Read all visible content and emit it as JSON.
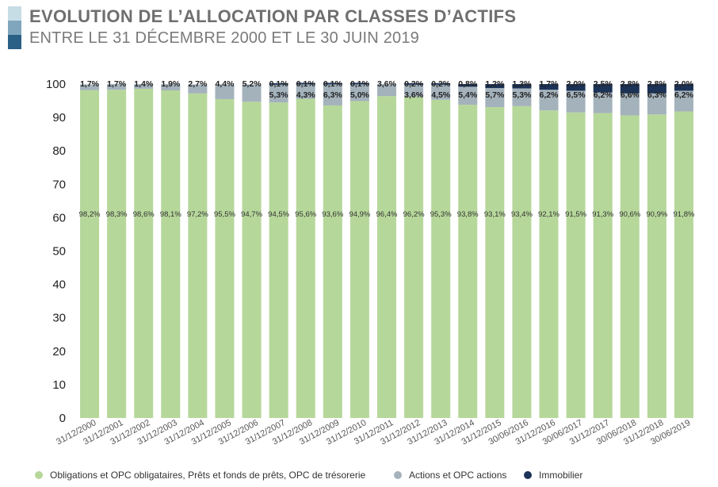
{
  "header": {
    "title": "EVOLUTION DE L’ALLOCATION PAR CLASSES D’ACTIFS",
    "subtitle": "ENTRE LE 31 DÉCEMBRE 2000 ET LE 30 JUIN 2019",
    "stripe_colors": [
      "#c6dde6",
      "#7fa6bd",
      "#2a5f86"
    ]
  },
  "colors": {
    "obligations": "#b6d79a",
    "actions": "#a4b2bc",
    "immobilier": "#1c3358",
    "axis_text": "#222222",
    "tick_label": "#555555"
  },
  "chart_data": {
    "type": "bar",
    "stacked": true,
    "ylim": [
      0,
      100
    ],
    "yticks": [
      0,
      10,
      20,
      30,
      40,
      50,
      60,
      70,
      80,
      90,
      100
    ],
    "categories": [
      "31/12/2000",
      "31/12/2001",
      "31/12/2002",
      "31/12/2003",
      "31/12/2004",
      "31/12/2005",
      "31/12/2006",
      "31/12/2007",
      "31/12/2008",
      "31/12/2009",
      "31/12/2010",
      "31/12/2011",
      "31/12/2012",
      "31/12/2013",
      "31/12/2014",
      "31/12/2015",
      "30/06/2016",
      "31/12/2016",
      "30/06/2017",
      "31/12/2017",
      "30/06/2018",
      "31/12/2018",
      "30/06/2019"
    ],
    "series": [
      {
        "name": "Obligations et OPC obligataires, Prêts et fonds de prêts, OPC de trésorerie",
        "values": [
          98.2,
          98.3,
          98.6,
          98.1,
          97.2,
          95.5,
          94.7,
          94.5,
          95.6,
          93.6,
          94.9,
          96.4,
          96.2,
          95.3,
          93.8,
          93.1,
          93.4,
          92.1,
          91.5,
          91.3,
          90.6,
          90.9,
          91.8
        ],
        "labels": [
          "98,2%",
          "98,3%",
          "98,6%",
          "98,1%",
          "97,2%",
          "95,5%",
          "94,7%",
          "94,5%",
          "95,6%",
          "93,6%",
          "94,9%",
          "96,4%",
          "96,2%",
          "95,3%",
          "93,8%",
          "93,1%",
          "93,4%",
          "92,1%",
          "91,5%",
          "91,3%",
          "90,6%",
          "90,9%",
          "91,8%"
        ]
      },
      {
        "name": "Actions et OPC actions",
        "values": [
          1.7,
          1.7,
          1.4,
          1.9,
          2.7,
          4.4,
          5.2,
          5.3,
          4.3,
          6.3,
          5.0,
          3.6,
          3.6,
          4.5,
          5.4,
          5.7,
          5.3,
          6.2,
          6.5,
          6.2,
          6.6,
          6.3,
          6.2
        ],
        "labels": [
          "1,7%",
          "1,7%",
          "1,4%",
          "1,9%",
          "2,7%",
          "4,4%",
          "5,2%",
          "5,3%",
          "4,3%",
          "6,3%",
          "5,0%",
          "3,6%",
          "3,6%",
          "4,5%",
          "5,4%",
          "5,7%",
          "5,3%",
          "6,2%",
          "6,5%",
          "6,2%",
          "6,6%",
          "6,3%",
          "6,2%"
        ]
      },
      {
        "name": "Immobilier",
        "values": [
          0,
          0,
          0,
          0,
          0,
          0,
          0,
          0.1,
          0.1,
          0.1,
          0.1,
          0,
          0.2,
          0.2,
          0.8,
          1.2,
          1.3,
          1.7,
          2.0,
          2.5,
          2.8,
          2.8,
          2.0
        ],
        "labels": [
          "",
          "",
          "",
          "",
          "",
          "",
          "",
          "0,1%",
          "0,1%",
          "0,1%",
          "0,1%",
          "",
          "0,2%",
          "0,2%",
          "0,8%",
          "1,2%",
          "1,3%",
          "1,7%",
          "2,0%",
          "2,5%",
          "2,8%",
          "2,8%",
          "2,0%"
        ]
      }
    ]
  },
  "legend": {
    "items": [
      {
        "label": "Obligations et OPC obligataires, Prêts et fonds de prêts, OPC de trésorerie",
        "color": "#b6d79a"
      },
      {
        "label": "Actions et OPC actions",
        "color": "#a4b2bc"
      },
      {
        "label": "Immobilier",
        "color": "#1c3358"
      }
    ]
  }
}
